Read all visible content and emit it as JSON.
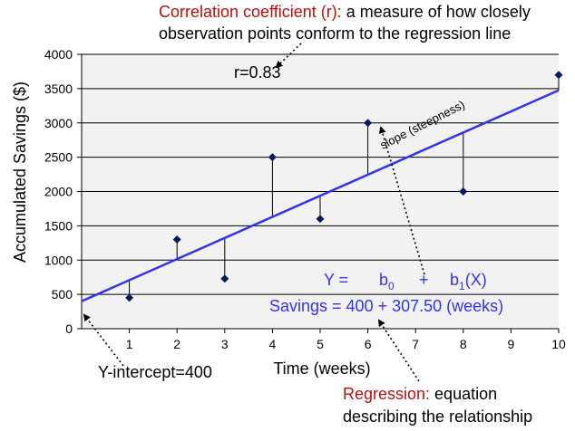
{
  "chart_data": {
    "type": "scatter",
    "xlabel": "Time (weeks)",
    "ylabel": "Accumulated Savings ($)",
    "xlim": [
      0,
      10
    ],
    "ylim": [
      0,
      4000
    ],
    "x_ticks": [
      1,
      2,
      3,
      4,
      5,
      6,
      7,
      8,
      9,
      10
    ],
    "y_ticks": [
      0,
      500,
      1000,
      1500,
      2000,
      2500,
      3000,
      3500,
      4000
    ],
    "grid": "horizontal",
    "points": [
      {
        "x": 1,
        "y": 450
      },
      {
        "x": 2,
        "y": 1300
      },
      {
        "x": 3,
        "y": 730
      },
      {
        "x": 4,
        "y": 2500
      },
      {
        "x": 5,
        "y": 1600
      },
      {
        "x": 6,
        "y": 3000
      },
      {
        "x": 8,
        "y": 2000
      },
      {
        "x": 10,
        "y": 3700
      }
    ],
    "regression_line": {
      "intercept": 400,
      "slope": 307.5
    },
    "colors": {
      "points": "#0a1a5c",
      "line": "#3333ee",
      "residuals": "#000000",
      "plot_bg": "#f2f2f2"
    }
  },
  "annotations": {
    "corr_title": "Correlation coefficient (r):",
    "corr_desc_1": " a measure of how closely",
    "corr_desc_2": "observation points conform to the regression line",
    "r_value": "r=0.83",
    "slope_label": "slope (steepness)",
    "equation_general_y": "Y =",
    "equation_b0": "b",
    "equation_b0_sub": "0",
    "equation_plus": "+",
    "equation_b1": "b",
    "equation_b1_sub": "1",
    "equation_b1_x": "(X)",
    "equation_specific": "Savings = 400 + 307.50 (weeks)",
    "intercept_label": "Y-intercept=400",
    "regression_title": "Regression:",
    "regression_desc_1": " equation",
    "regression_desc_2": "describing the relationship"
  }
}
